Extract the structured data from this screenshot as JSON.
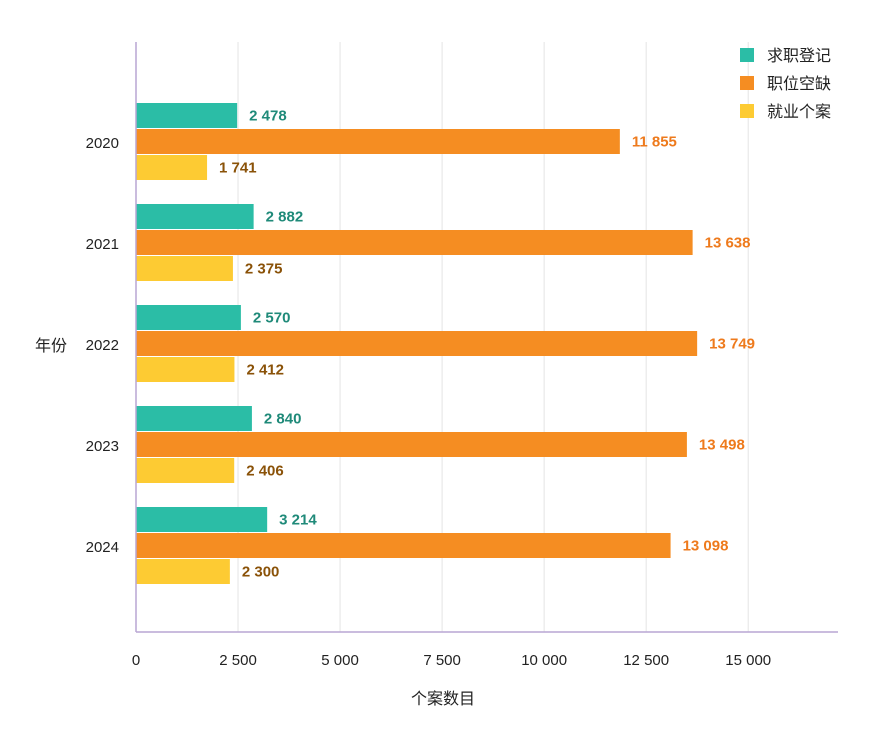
{
  "chart_data": {
    "type": "bar",
    "orientation": "horizontal",
    "title": "",
    "xlabel": "个案数目",
    "ylabel": "年份",
    "xlim": [
      0,
      17200
    ],
    "xticks": [
      0,
      2500,
      5000,
      7500,
      10000,
      12500,
      15000
    ],
    "xtick_labels": [
      "0",
      "2 500",
      "5 000",
      "7 500",
      "10 000",
      "12 500",
      "15 000"
    ],
    "categories": [
      "2020",
      "2021",
      "2022",
      "2023",
      "2024"
    ],
    "series": [
      {
        "name": "求职登记",
        "color": "#2bbda6",
        "label_color": "#1f8a79",
        "values": [
          2478,
          2882,
          2570,
          2840,
          3214
        ],
        "labels": [
          "2 478",
          "2 882",
          "2 570",
          "2 840",
          "3 214"
        ]
      },
      {
        "name": "职位空缺",
        "color": "#f58d22",
        "label_color": "#ee7a1c",
        "values": [
          11855,
          13638,
          13749,
          13498,
          13098
        ],
        "labels": [
          "11 855",
          "13 638",
          "13 749",
          "13 498",
          "13 098"
        ]
      },
      {
        "name": "就业个案",
        "color": "#fdcb33",
        "label_color": "#8a5208",
        "values": [
          1741,
          2375,
          2412,
          2406,
          2300
        ],
        "labels": [
          "1 741",
          "2 375",
          "2 412",
          "2 406",
          "2 300"
        ]
      }
    ],
    "grid": true,
    "legend_position": "top-right"
  }
}
